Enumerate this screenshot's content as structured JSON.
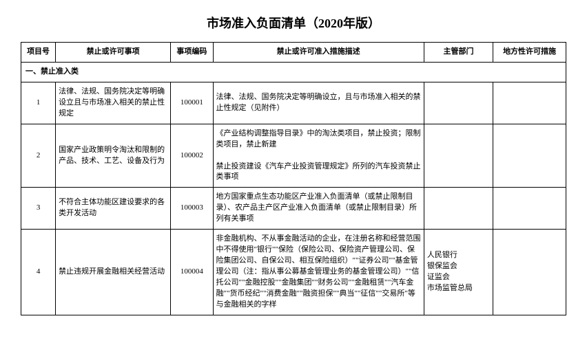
{
  "title": "市场准入负面清单（2020年版）",
  "headers": {
    "index": "项目号",
    "matter": "禁止或许可事项",
    "code": "事项编码",
    "desc": "禁止或许可准入措施描述",
    "dept": "主管部门",
    "local": "地方性许可措施"
  },
  "section_label": "一、禁止准入类",
  "rows": [
    {
      "index": "1",
      "matter": "法律、法规、国务院决定等明确设立且与市场准入相关的禁止性规定",
      "code": "100001",
      "desc": "法律、法规、国务院决定等明确设立，且与市场准入相关的禁止性规定（见附件）",
      "dept": "",
      "local": ""
    },
    {
      "index": "2",
      "matter": "国家产业政策明令淘汰和限制的产品、技术、工艺、设备及行为",
      "code": "100002",
      "desc": "《产业结构调整指导目录》中的淘汰类项目，禁止投资；限制类项目，禁止新建\n\n禁止投资建设《汽车产业投资管理规定》所列的汽车投资禁止类事项",
      "dept": "",
      "local": ""
    },
    {
      "index": "3",
      "matter": "不符合主体功能区建设要求的各类开发活动",
      "code": "100003",
      "desc": "地方国家重点生态功能区产业准入负面清单（或禁止限制目录）、农产品主产区产业准入负面清单（或禁止限制目录）所列有关事项",
      "dept": "",
      "local": ""
    },
    {
      "index": "4",
      "matter": "禁止违规开展金融相关经营活动",
      "code": "100004",
      "desc": "非金融机构、不从事金融活动的企业，在注册名称和经营范围中不得使用\"银行\"\"保险（保险公司、保险资产管理公司、保险集团公司、自保公司、相互保险组织）\"\"证券公司\"\"基金管理公司（注：指从事公募基金管理业务的基金管理公司）\"\"信托公司\"\"金融控股\"\"金融集团\"\"财务公司\"\"金融租赁\"\"汽车金融\"\"货币经纪\"\"消费金融\"\"融资担保\"\"典当\"\"征信\"\"交易所\"等与金融相关的字样",
      "dept": "人民银行\n银保监会\n证监会\n市场监管总局",
      "local": ""
    }
  ]
}
